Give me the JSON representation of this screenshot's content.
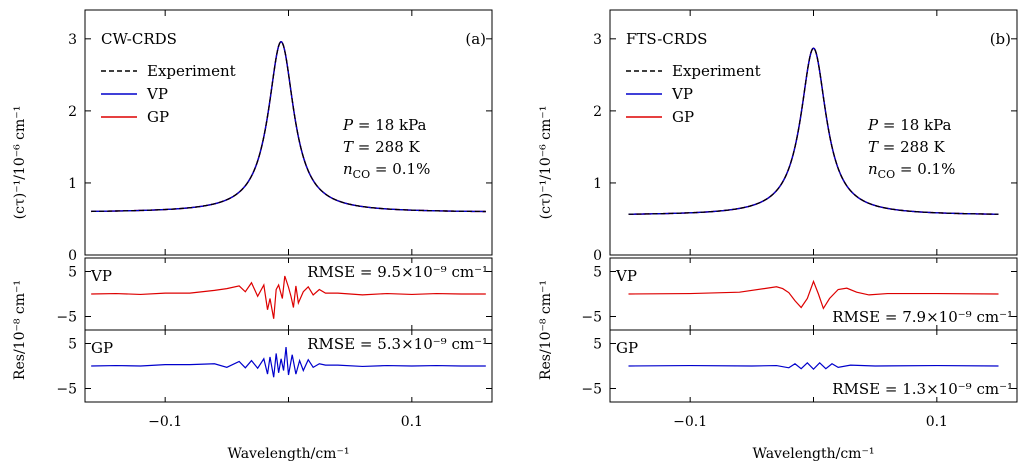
{
  "chart_data": [
    {
      "type": "line",
      "panel_label": "(a)",
      "method": "CW-CRDS",
      "legend": [
        "Experiment",
        "VP",
        "GP"
      ],
      "legend_placement": "upper-left",
      "conditions": [
        "P = 18 kPa",
        "T = 288 K",
        "nCO = 0.1%"
      ],
      "xlabel": "Wavelength/cm⁻¹",
      "ylabel": "(cτ)⁻¹/10⁻⁶ cm⁻¹",
      "res_ylabel": "Res/10⁻⁸ cm⁻¹",
      "xlim": [
        -0.165,
        0.165
      ],
      "ylim": [
        0,
        3.4
      ],
      "res_ylim": [
        -8,
        8
      ],
      "xticks": [
        "−0.1",
        "0.1"
      ],
      "yticks": [
        "0",
        "1",
        "2",
        "3"
      ],
      "res_yticks": [
        "5",
        "−5"
      ],
      "profile": {
        "center": -0.006,
        "peak": 2.96,
        "baseline": 0.59,
        "hwhm": 0.0125
      },
      "series": [
        {
          "name": "Experiment",
          "color": "#000000",
          "style": "dashed"
        },
        {
          "name": "VP",
          "color": "#0000cc",
          "style": "solid"
        },
        {
          "name": "GP",
          "color": "#dd0000",
          "style": "solid"
        }
      ],
      "residuals": [
        {
          "label": "VP",
          "color": "#dd0000",
          "rmse": "RMSE = 9.5×10⁻⁹ cm⁻¹",
          "rmse_pos": "top",
          "points": [
            [
              -0.16,
              0
            ],
            [
              -0.14,
              0.1
            ],
            [
              -0.12,
              -0.1
            ],
            [
              -0.1,
              0.2
            ],
            [
              -0.08,
              0.2
            ],
            [
              -0.06,
              0.8
            ],
            [
              -0.05,
              1.2
            ],
            [
              -0.04,
              1.8
            ],
            [
              -0.035,
              0.5
            ],
            [
              -0.03,
              2.5
            ],
            [
              -0.025,
              -0.5
            ],
            [
              -0.02,
              2
            ],
            [
              -0.017,
              -3.5
            ],
            [
              -0.015,
              -1
            ],
            [
              -0.012,
              -5.5
            ],
            [
              -0.01,
              1
            ],
            [
              -0.008,
              2
            ],
            [
              -0.005,
              -1
            ],
            [
              -0.003,
              4
            ],
            [
              0,
              1.5
            ],
            [
              0.002,
              -0.5
            ],
            [
              0.004,
              -3
            ],
            [
              0.006,
              1.8
            ],
            [
              0.008,
              -2
            ],
            [
              0.012,
              0.5
            ],
            [
              0.016,
              1.6
            ],
            [
              0.02,
              -0.2
            ],
            [
              0.025,
              1
            ],
            [
              0.03,
              0.2
            ],
            [
              0.04,
              0.2
            ],
            [
              0.06,
              -0.2
            ],
            [
              0.08,
              0.1
            ],
            [
              0.1,
              -0.1
            ],
            [
              0.12,
              0.1
            ],
            [
              0.14,
              0
            ],
            [
              0.16,
              0
            ]
          ]
        },
        {
          "label": "GP",
          "color": "#0000cc",
          "rmse": "RMSE = 5.3×10⁻⁹ cm⁻¹",
          "rmse_pos": "top",
          "points": [
            [
              -0.16,
              0
            ],
            [
              -0.14,
              0.1
            ],
            [
              -0.12,
              0
            ],
            [
              -0.1,
              0.3
            ],
            [
              -0.08,
              0.3
            ],
            [
              -0.06,
              0.5
            ],
            [
              -0.05,
              -0.3
            ],
            [
              -0.04,
              1
            ],
            [
              -0.035,
              -0.4
            ],
            [
              -0.03,
              1.2
            ],
            [
              -0.025,
              -0.5
            ],
            [
              -0.02,
              1.6
            ],
            [
              -0.017,
              -1.8
            ],
            [
              -0.015,
              2
            ],
            [
              -0.012,
              -2.5
            ],
            [
              -0.01,
              2.8
            ],
            [
              -0.008,
              -1.5
            ],
            [
              -0.006,
              1.6
            ],
            [
              -0.004,
              -1
            ],
            [
              -0.002,
              4.2
            ],
            [
              0,
              -2
            ],
            [
              0.003,
              2.5
            ],
            [
              0.006,
              -1.8
            ],
            [
              0.009,
              1.2
            ],
            [
              0.012,
              -1
            ],
            [
              0.016,
              1.4
            ],
            [
              0.02,
              -0.3
            ],
            [
              0.025,
              0.5
            ],
            [
              0.03,
              0.2
            ],
            [
              0.04,
              0.2
            ],
            [
              0.06,
              -0.1
            ],
            [
              0.08,
              0.1
            ],
            [
              0.1,
              0
            ],
            [
              0.12,
              0.1
            ],
            [
              0.14,
              0
            ],
            [
              0.16,
              0
            ]
          ]
        }
      ]
    },
    {
      "type": "line",
      "panel_label": "(b)",
      "method": "FTS-CRDS",
      "legend": [
        "Experiment",
        "VP",
        "GP"
      ],
      "legend_placement": "upper-left",
      "conditions": [
        "P = 18 kPa",
        "T = 288 K",
        "nCO = 0.1%"
      ],
      "xlabel": "Wavelength/cm⁻¹",
      "ylabel": "(cτ)⁻¹/10⁻⁶ cm⁻¹",
      "res_ylabel": "Res/10⁻⁸ cm⁻¹",
      "xlim": [
        -0.165,
        0.165
      ],
      "ylim": [
        0,
        3.4
      ],
      "res_ylim": [
        -8,
        8
      ],
      "xticks": [
        "−0.1",
        "0.1"
      ],
      "yticks": [
        "0",
        "1",
        "2",
        "3"
      ],
      "res_yticks": [
        "5",
        "−5"
      ],
      "profile": {
        "center": 0.0,
        "peak": 2.87,
        "baseline": 0.55,
        "hwhm": 0.0125
      },
      "series": [
        {
          "name": "Experiment",
          "color": "#000000",
          "style": "dashed"
        },
        {
          "name": "VP",
          "color": "#0000cc",
          "style": "solid"
        },
        {
          "name": "GP",
          "color": "#dd0000",
          "style": "solid"
        }
      ],
      "residuals": [
        {
          "label": "VP",
          "color": "#dd0000",
          "rmse": "RMSE = 7.9×10⁻⁹ cm⁻¹",
          "rmse_pos": "bottom",
          "points": [
            [
              -0.15,
              0
            ],
            [
              -0.1,
              0.1
            ],
            [
              -0.06,
              0.4
            ],
            [
              -0.04,
              1.2
            ],
            [
              -0.03,
              1.6
            ],
            [
              -0.025,
              1.2
            ],
            [
              -0.02,
              0.3
            ],
            [
              -0.015,
              -1.5
            ],
            [
              -0.01,
              -3
            ],
            [
              -0.005,
              -1
            ],
            [
              0,
              2.8
            ],
            [
              0.004,
              0
            ],
            [
              0.008,
              -3.2
            ],
            [
              0.013,
              -1
            ],
            [
              0.02,
              1
            ],
            [
              0.027,
              1.3
            ],
            [
              0.035,
              0.4
            ],
            [
              0.045,
              -0.2
            ],
            [
              0.06,
              0.1
            ],
            [
              0.1,
              0.1
            ],
            [
              0.15,
              0
            ]
          ]
        },
        {
          "label": "GP",
          "color": "#0000cc",
          "rmse": "RMSE = 1.3×10⁻⁹ cm⁻¹",
          "rmse_pos": "bottom",
          "points": [
            [
              -0.15,
              0
            ],
            [
              -0.1,
              0.1
            ],
            [
              -0.05,
              0
            ],
            [
              -0.03,
              0.1
            ],
            [
              -0.02,
              -0.4
            ],
            [
              -0.015,
              0.5
            ],
            [
              -0.01,
              -0.6
            ],
            [
              -0.005,
              0.7
            ],
            [
              0,
              -0.7
            ],
            [
              0.005,
              0.7
            ],
            [
              0.01,
              -0.6
            ],
            [
              0.015,
              0.5
            ],
            [
              0.02,
              -0.3
            ],
            [
              0.03,
              0.2
            ],
            [
              0.05,
              0
            ],
            [
              0.1,
              0.1
            ],
            [
              0.15,
              0
            ]
          ]
        }
      ]
    }
  ]
}
